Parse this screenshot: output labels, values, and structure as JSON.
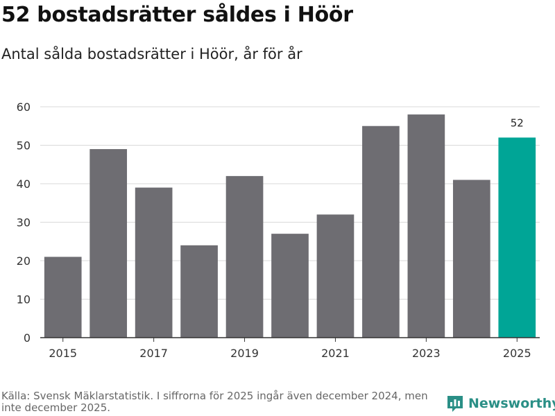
{
  "title": "52 bostadsrätter såldes i Höör",
  "subtitle": "Antal sålda bostadsrätter i Höör, år för år",
  "source": "Källa: Svensk Mäklarstatistik. I siffrorna för 2025 ingår även december 2024, men inte december 2025.",
  "brand": "Newsworthy",
  "colors": {
    "bar": "#6e6d72",
    "highlight": "#00a596",
    "grid": "#d9d9d9",
    "axis": "#333333",
    "brand": "#2a8f86"
  },
  "chart_data": {
    "type": "bar",
    "title": "52 bostadsrätter såldes i Höör",
    "subtitle": "Antal sålda bostadsrätter i Höör, år för år",
    "categories": [
      "2015",
      "2016",
      "2017",
      "2018",
      "2019",
      "2020",
      "2021",
      "2022",
      "2023",
      "2024",
      "2025"
    ],
    "values": [
      21,
      49,
      39,
      24,
      42,
      27,
      32,
      55,
      58,
      41,
      52
    ],
    "x_tick_labels": [
      "2015",
      "2017",
      "2019",
      "2021",
      "2023",
      "2025"
    ],
    "y_ticks": [
      0,
      10,
      20,
      30,
      40,
      50,
      60
    ],
    "ylim": [
      0,
      60
    ],
    "highlight_category": "2025",
    "data_labels": [
      {
        "category": "2025",
        "text": "52"
      }
    ],
    "grid": true,
    "xlabel": "",
    "ylabel": ""
  }
}
